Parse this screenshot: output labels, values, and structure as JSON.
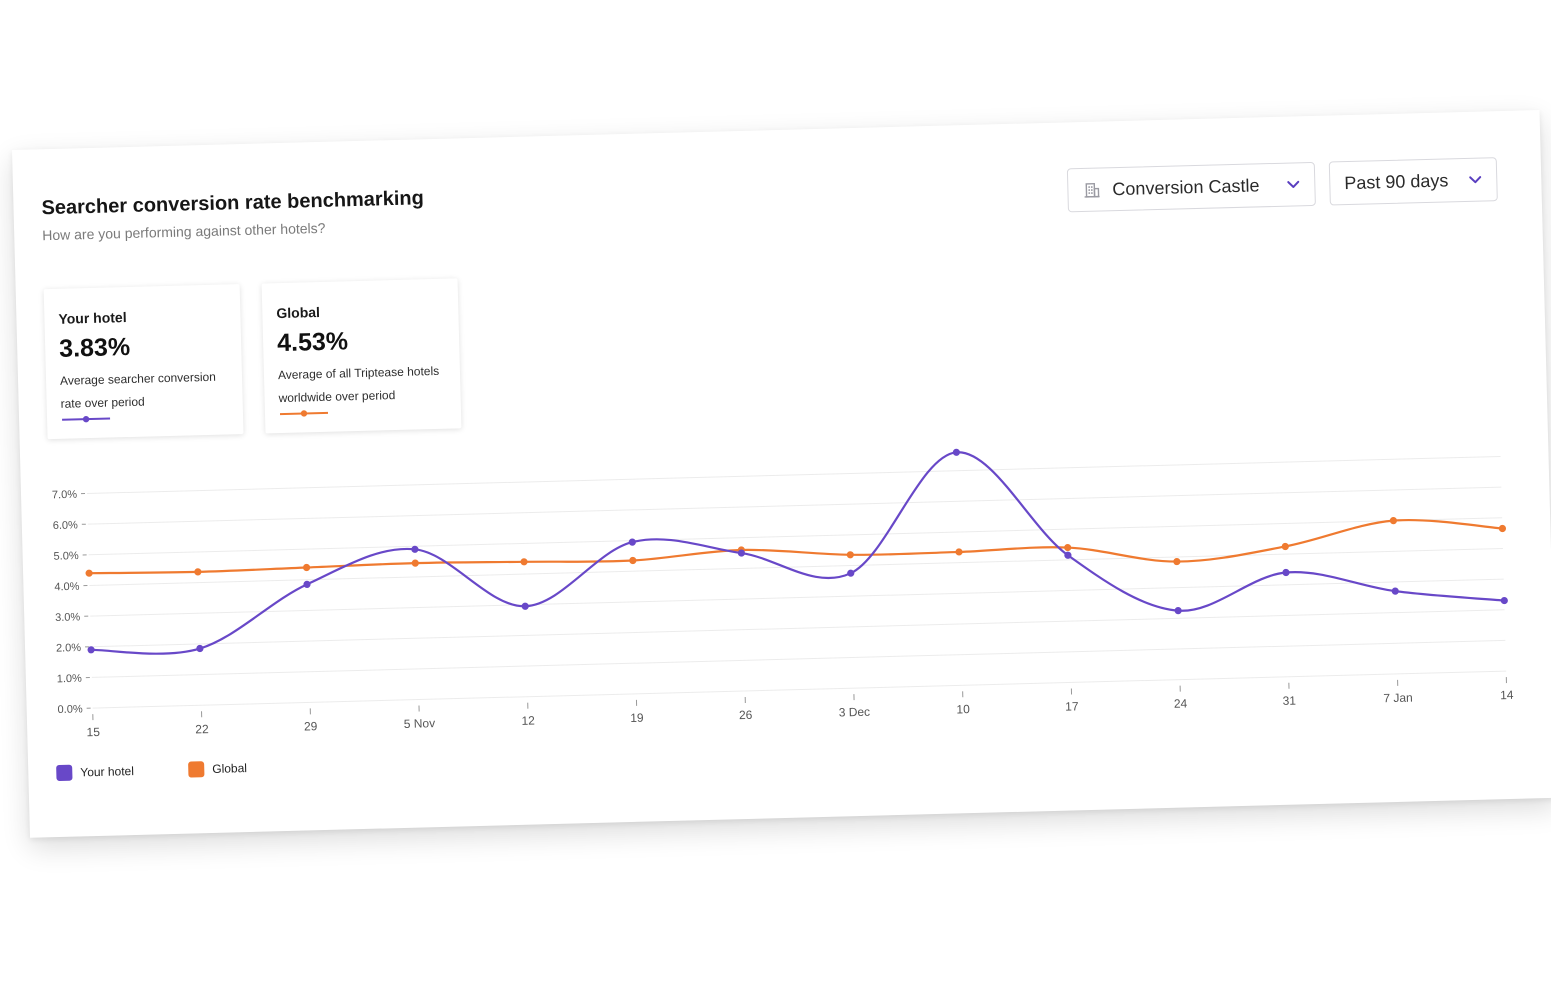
{
  "header": {
    "title": "Searcher conversion rate benchmarking",
    "subtitle": "How are you performing against other hotels?"
  },
  "controls": {
    "hotel_select": {
      "value": "Conversion Castle",
      "icon": "hotel-building-icon"
    },
    "period_select": {
      "value": "Past 90 days"
    }
  },
  "stats": [
    {
      "label": "Your hotel",
      "value": "3.83%",
      "description": "Average searcher conversion rate over period"
    },
    {
      "label": "Global",
      "value": "4.53%",
      "description": "Average of all Triptease hotels worldwide over period"
    }
  ],
  "colors": {
    "your_hotel": "#6848c8",
    "global": "#ef7a30",
    "grid": "#ececec",
    "axis_text": "#555555"
  },
  "chart_data": {
    "type": "line",
    "title": "",
    "xlabel": "",
    "ylabel": "",
    "ylim": [
      0,
      7.5
    ],
    "y_ticks": [
      "0.0%",
      "1.0%",
      "2.0%",
      "3.0%",
      "4.0%",
      "5.0%",
      "6.0%",
      "7.0%"
    ],
    "categories": [
      "15",
      "22",
      "29",
      "5 Nov",
      "12",
      "19",
      "26",
      "3 Dec",
      "10",
      "17",
      "24",
      "31",
      "7 Jan",
      "14"
    ],
    "series": [
      {
        "name": "Your hotel",
        "values": [
          1.9,
          1.85,
          3.85,
          4.9,
          2.95,
          4.95,
          4.5,
          3.75,
          7.6,
          4.15,
          2.25,
          3.4,
          2.7,
          2.3
        ]
      },
      {
        "name": "Global",
        "values": [
          4.4,
          4.35,
          4.4,
          4.45,
          4.4,
          4.35,
          4.6,
          4.35,
          4.35,
          4.4,
          3.85,
          4.25,
          5.0,
          4.65
        ]
      }
    ],
    "legend": "bottom-left",
    "grid": true
  }
}
